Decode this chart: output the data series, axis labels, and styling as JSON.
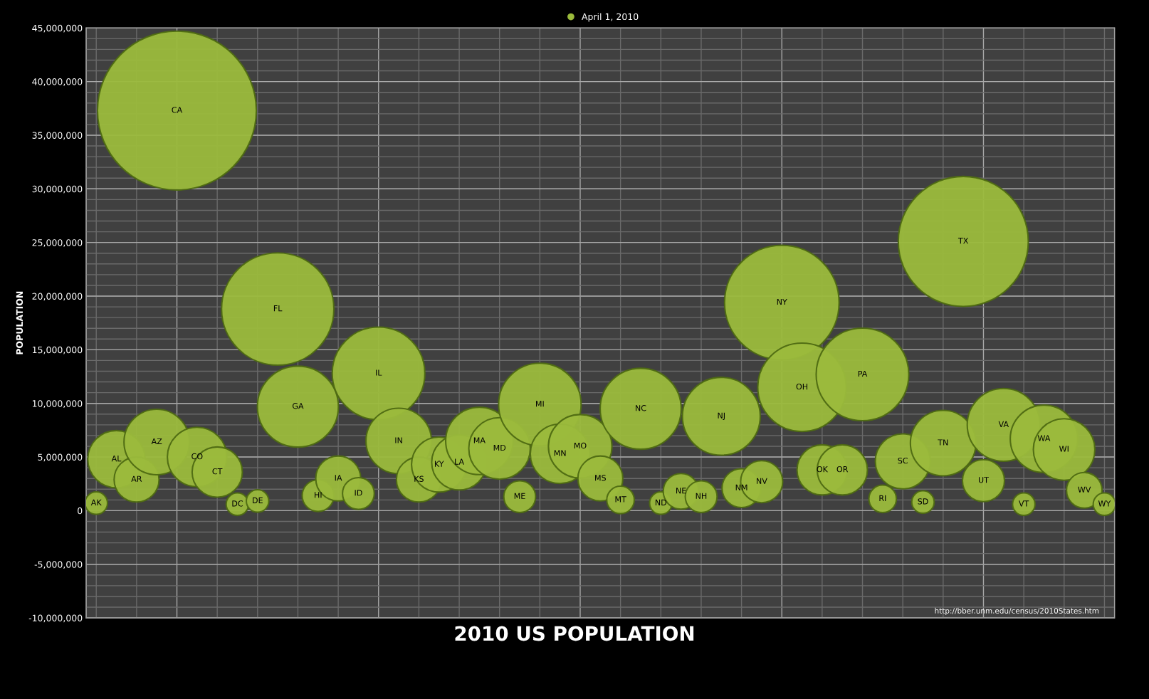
{
  "chart_data": {
    "type": "bubble",
    "title": "2010 US POPULATION",
    "ylabel": "POPULATION",
    "annotations": [
      "http://bber.unm.edu/census/2010States.htm"
    ],
    "categories": [
      null,
      null,
      null,
      null,
      null,
      null,
      null,
      null,
      null,
      null,
      null,
      null,
      null,
      null,
      null,
      null,
      null,
      null,
      null,
      null,
      null,
      null,
      null,
      null,
      null,
      null,
      null,
      null,
      null,
      null,
      null,
      null,
      null,
      null,
      null,
      null,
      null,
      null,
      null,
      null,
      null,
      null,
      null,
      null,
      null,
      null,
      null,
      null,
      null,
      null,
      null
    ],
    "series": [
      {
        "name": "April 1, 2010",
        "color": "#9bbb3c",
        "values": [
          700000,
          4800000,
          2900000,
          6400000,
          37300000,
          5000000,
          3600000,
          600000,
          900000,
          18800000,
          9700000,
          1400000,
          3000000,
          1600000,
          12800000,
          6500000,
          2900000,
          4300000,
          4500000,
          6500000,
          5800000,
          1300000,
          9900000,
          5300000,
          6000000,
          3000000,
          1000000,
          9500000,
          700000,
          1800000,
          1300000,
          8800000,
          2100000,
          2700000,
          19400000,
          11500000,
          3800000,
          3800000,
          12700000,
          1100000,
          4600000,
          800000,
          6300000,
          25100000,
          2800000,
          8000000,
          600000,
          6700000,
          5700000,
          1900000,
          600000
        ],
        "sizes": [
          0.02,
          0.13,
          0.08,
          0.17,
          1,
          0.14,
          0.1,
          0.02,
          0.02,
          0.5,
          0.26,
          0.04,
          0.08,
          0.04,
          0.34,
          0.17,
          0.08,
          0.12,
          0.12,
          0.18,
          0.15,
          0.04,
          0.27,
          0.14,
          0.16,
          0.08,
          0.03,
          0.26,
          0.02,
          0.05,
          0.04,
          0.24,
          0.06,
          0.07,
          0.52,
          0.31,
          0.1,
          0.1,
          0.34,
          0.03,
          0.12,
          0.02,
          0.17,
          0.67,
          0.07,
          0.21,
          0.02,
          0.18,
          0.15,
          0.05,
          0.02
        ],
        "value_labels": [
          "AK",
          "AL",
          "AR",
          "AZ",
          "CA",
          "CO",
          "CT",
          "DC",
          "DE",
          "FL",
          "GA",
          "HI",
          "IA",
          "ID",
          "IL",
          "IN",
          "KS",
          "KY",
          "LA",
          "MA",
          "MD",
          "ME",
          "MI",
          "MN",
          "MO",
          "MS",
          "MT",
          "NC",
          "ND",
          "NE",
          "NH",
          "NJ",
          "NM",
          "NV",
          "NY",
          "OH",
          "OK",
          "OR",
          "PA",
          "RI",
          "SC",
          "SD",
          "TN",
          "TX",
          "UT",
          "VA",
          "VT",
          "WA",
          "WI",
          "WV",
          "WY"
        ]
      }
    ],
    "ylim": [
      -10000000,
      45000000
    ],
    "yticks": [
      {
        "value": -10000000,
        "label": "-10,000,000"
      },
      {
        "value": -5000000,
        "label": "-5,000,000"
      },
      {
        "value": 0,
        "label": "0"
      },
      {
        "value": 5000000,
        "label": "5,000,000"
      },
      {
        "value": 10000000,
        "label": "10,000,000"
      },
      {
        "value": 15000000,
        "label": "15,000,000"
      },
      {
        "value": 20000000,
        "label": "20,000,000"
      },
      {
        "value": 25000000,
        "label": "25,000,000"
      },
      {
        "value": 30000000,
        "label": "30,000,000"
      },
      {
        "value": 35000000,
        "label": "35,000,000"
      },
      {
        "value": 40000000,
        "label": "40,000,000"
      },
      {
        "value": 45000000,
        "label": "45,000,000"
      }
    ],
    "tick_labels": "y",
    "grid": true,
    "legend": "top"
  }
}
